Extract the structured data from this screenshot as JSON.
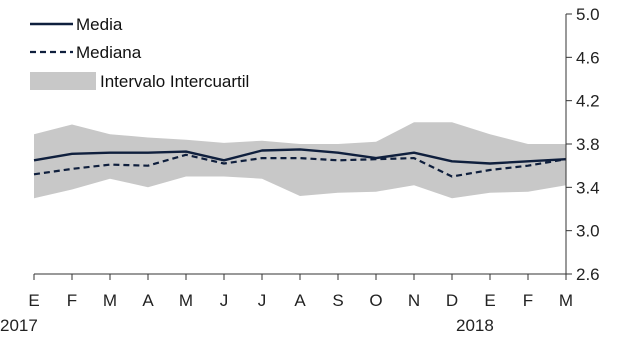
{
  "chart_data": {
    "type": "line",
    "title": "",
    "xlabel": "",
    "ylabel": "",
    "categories": [
      "E",
      "F",
      "M",
      "A",
      "M",
      "J",
      "J",
      "A",
      "S",
      "O",
      "N",
      "D",
      "E",
      "F",
      "M"
    ],
    "year_labels": [
      {
        "index": 0,
        "label": "2017"
      },
      {
        "index": 12,
        "label": "2018"
      }
    ],
    "ylim": [
      2.6,
      5.0
    ],
    "yticks": [
      "2.6",
      "3.0",
      "3.4",
      "3.8",
      "4.2",
      "4.6",
      "5.0"
    ],
    "y_axis_side": "right",
    "grid": false,
    "legend_position": "top-left",
    "series": [
      {
        "name": "Media",
        "style": "solid",
        "color": "#0f1f3d",
        "values": [
          3.65,
          3.71,
          3.72,
          3.72,
          3.73,
          3.65,
          3.74,
          3.75,
          3.72,
          3.67,
          3.72,
          3.64,
          3.62,
          3.64,
          3.66
        ]
      },
      {
        "name": "Mediana",
        "style": "dashed",
        "color": "#0f1f3d",
        "values": [
          3.52,
          3.57,
          3.61,
          3.6,
          3.7,
          3.62,
          3.67,
          3.67,
          3.65,
          3.66,
          3.67,
          3.5,
          3.56,
          3.6,
          3.66
        ]
      }
    ],
    "band": {
      "name": "Intervalo Intercuartil",
      "color": "#c8c8c8",
      "upper": [
        3.89,
        3.98,
        3.89,
        3.86,
        3.84,
        3.81,
        3.83,
        3.8,
        3.8,
        3.82,
        4.0,
        4.0,
        3.89,
        3.8,
        3.8
      ],
      "lower": [
        3.3,
        3.38,
        3.48,
        3.4,
        3.5,
        3.5,
        3.48,
        3.32,
        3.35,
        3.36,
        3.42,
        3.3,
        3.35,
        3.36,
        3.42
      ]
    }
  }
}
